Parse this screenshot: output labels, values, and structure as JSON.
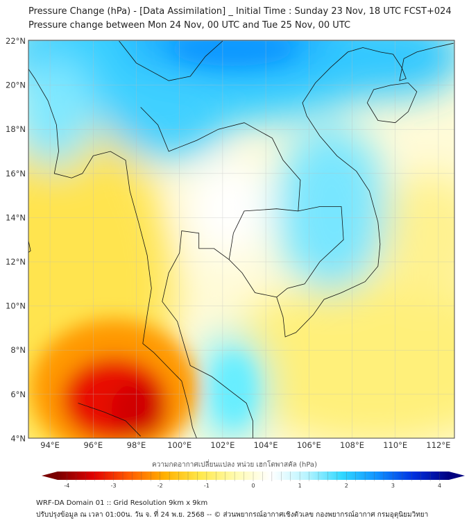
{
  "header": {
    "title": "Pressure Change (hPa) - [Data Assimilation] _ Initial Time : Sunday 23 Nov, 18 UTC FCST+024",
    "subtitle": "Pressure change between Mon 24 Nov, 00 UTC and Tue 25 Nov, 00 UTC"
  },
  "map": {
    "lat_labels": [
      "22°N",
      "20°N",
      "18°N",
      "16°N",
      "14°N",
      "12°N",
      "10°N",
      "8°N",
      "6°N",
      "4°N"
    ],
    "lon_labels": [
      "94°E",
      "96°E",
      "98°E",
      "100°E",
      "102°E",
      "104°E",
      "106°E",
      "108°E",
      "110°E",
      "112°E"
    ],
    "lat_values": [
      22,
      20,
      18,
      16,
      14,
      12,
      10,
      8,
      6,
      4
    ],
    "lon_values": [
      94,
      96,
      98,
      100,
      102,
      104,
      106,
      108,
      110,
      112
    ],
    "extent": {
      "lon": [
        93,
        112.7
      ],
      "lat": [
        4,
        22
      ]
    }
  },
  "colorbar": {
    "title": "ความกดอากาศเปลี่ยนแปลง หน่วย เฮกโตพาสคัล (hPa)",
    "tick_labels": [
      "-4",
      "-3",
      "-2",
      "-1",
      "0",
      "1",
      "2",
      "3",
      "4"
    ],
    "range": [
      -4.2,
      4.2
    ],
    "colors": [
      "#7a0000",
      "#e00000",
      "#ff5a00",
      "#ffb000",
      "#ffe84a",
      "#fffbb0",
      "#ffffff",
      "#b8f4ff",
      "#30d8ff",
      "#1090ff",
      "#0030e0",
      "#000080"
    ]
  },
  "footer": {
    "line1": "WRF-DA Domain 01 :: Grid Resolution 9km x 9km",
    "line2": "ปรับปรุงข้อมูล ณ เวลา 01:00น. วัน จ. ที่ 24 พ.ย. 2568 -- © ส่วนพยากรณ์อากาศเชิงตัวเลข กองพยากรณ์อากาศ กรมอุตุนิยมวิทยา"
  }
}
